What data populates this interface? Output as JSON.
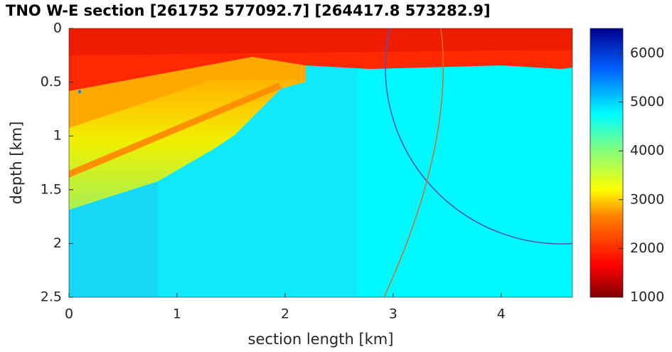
{
  "chart_data": {
    "type": "image",
    "title": "TNO W-E section [261752 577092.7] [264417.8 573282.9]",
    "x_label": "section length [km]",
    "y_label": "depth [km]",
    "xlim": [
      0,
      4.66
    ],
    "xticks": [
      0,
      1,
      2,
      3,
      4
    ],
    "ylim": [
      0,
      2.5
    ],
    "yticks": [
      0,
      0.5,
      1,
      1.5,
      2,
      2.5
    ],
    "y_reversed": true,
    "colorbar": {
      "lim": [
        1000,
        6510
      ],
      "ticks": [
        1000,
        2000,
        3000,
        4000,
        5000,
        6000
      ]
    }
  }
}
